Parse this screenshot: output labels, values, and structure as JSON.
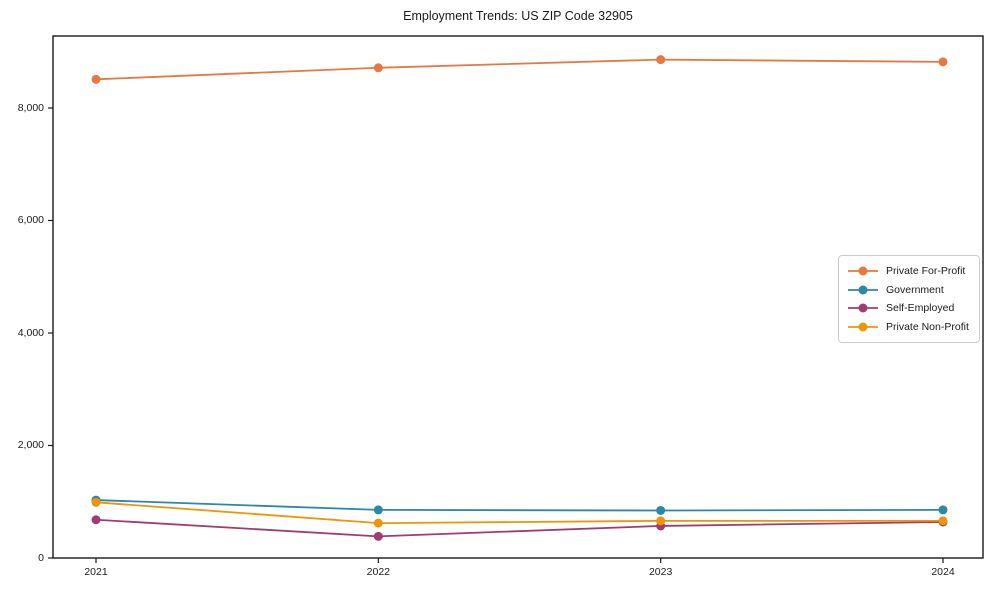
{
  "colors": {
    "background": "#ffffff",
    "axis": "#1a1a1a",
    "legend_border": "#cccccc",
    "text": "#1a1a1a"
  },
  "chart_data": {
    "type": "line",
    "title": "Employment Trends: US ZIP Code 32905",
    "xlabel": "",
    "ylabel": "",
    "categories": [
      "2021",
      "2022",
      "2023",
      "2024"
    ],
    "series": [
      {
        "name": "Private For-Profit",
        "color": "#E67843",
        "values": [
          8510,
          8715,
          8860,
          8820
        ]
      },
      {
        "name": "Government",
        "color": "#2E86A8",
        "values": [
          1030,
          855,
          845,
          855
        ]
      },
      {
        "name": "Self-Employed",
        "color": "#A23B72",
        "values": [
          680,
          385,
          570,
          640
        ]
      },
      {
        "name": "Private Non-Profit",
        "color": "#F0940A",
        "values": [
          990,
          620,
          660,
          660
        ]
      }
    ],
    "ylim": [
      0,
      9280
    ],
    "y_ticks": [
      0,
      2000,
      4000,
      6000,
      8000
    ],
    "y_tick_labels": [
      "0",
      "2,000",
      "4,000",
      "6,000",
      "8,000"
    ],
    "grid": false,
    "marker": "circle",
    "legend_position": "center right"
  }
}
